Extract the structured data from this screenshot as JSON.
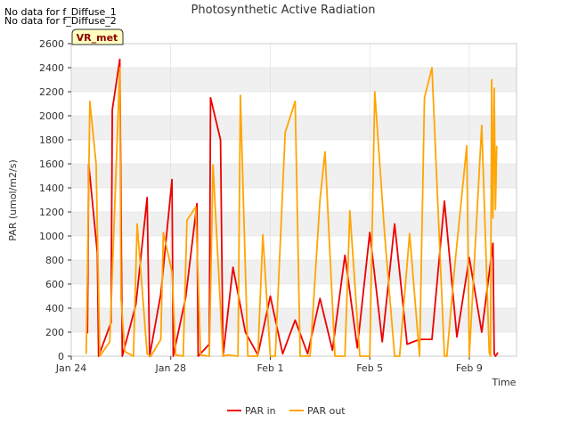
{
  "notices": [
    "No data for f_Diffuse_1",
    "No data for f_Diffuse_2"
  ],
  "site_badge": "VR_met",
  "colors": {
    "par_in": "#ee0000",
    "par_out": "#ffa500",
    "band": "#f0f0f0",
    "grid": "#dcdcdc",
    "badge_fill": "#ffffc0"
  },
  "chart_data": {
    "type": "line",
    "title": "Photosynthetic Active Radiation",
    "xlabel": "Time",
    "ylabel": "PAR (umol/m2/s)",
    "ylim": [
      0,
      2600
    ],
    "xlim": [
      0,
      17.9
    ],
    "x_unit": "days since Jan 24",
    "y_ticks": [
      0,
      200,
      400,
      600,
      800,
      1000,
      1200,
      1400,
      1600,
      1800,
      2000,
      2200,
      2400,
      2600
    ],
    "x_ticks": [
      {
        "value": 0,
        "label": "Jan 24"
      },
      {
        "value": 4,
        "label": "Jan 28"
      },
      {
        "value": 8,
        "label": "Feb 1"
      },
      {
        "value": 12,
        "label": "Feb 5"
      },
      {
        "value": 16,
        "label": "Feb 9"
      }
    ],
    "legend": {
      "position": "bottom-center",
      "entries": [
        "PAR in",
        "PAR out"
      ]
    },
    "series": [
      {
        "name": "PAR in",
        "color": "#ee0000",
        "x": [
          0.65,
          0.7,
          1.05,
          1.1,
          1.6,
          1.65,
          1.95,
          2.05,
          2.6,
          3.05,
          3.15,
          3.6,
          4.05,
          4.1,
          4.6,
          5.05,
          5.1,
          5.55,
          5.6,
          6.0,
          6.1,
          6.5,
          7.0,
          7.5,
          8.0,
          8.5,
          9.0,
          9.5,
          10.0,
          10.5,
          11.0,
          11.5,
          12.0,
          12.5,
          13.0,
          13.5,
          14.0,
          14.5,
          15.0,
          15.5,
          16.0,
          16.5,
          16.95,
          17.0,
          17.05,
          17.15
        ],
        "values": [
          190,
          1600,
          860,
          0,
          280,
          2050,
          2470,
          0,
          430,
          1320,
          0,
          520,
          1470,
          0,
          490,
          1270,
          0,
          100,
          2150,
          1800,
          0,
          740,
          200,
          10,
          500,
          20,
          300,
          20,
          480,
          50,
          840,
          70,
          1030,
          120,
          1100,
          100,
          140,
          140,
          1290,
          160,
          820,
          200,
          940,
          20,
          0,
          30
        ]
      },
      {
        "name": "PAR out",
        "color": "#ffa500",
        "x": [
          0.6,
          0.75,
          1.0,
          1.15,
          1.55,
          1.95,
          2.0,
          2.15,
          2.5,
          2.65,
          3.05,
          3.2,
          3.6,
          3.7,
          4.05,
          4.2,
          4.5,
          4.65,
          5.0,
          5.2,
          5.55,
          5.7,
          6.1,
          6.3,
          6.7,
          6.8,
          7.1,
          7.5,
          7.7,
          8.0,
          8.2,
          8.6,
          9.0,
          9.2,
          9.6,
          10.0,
          10.2,
          10.6,
          11.0,
          11.2,
          11.6,
          12.0,
          12.2,
          12.6,
          13.0,
          13.2,
          13.6,
          14.0,
          14.2,
          14.5,
          15.0,
          15.1,
          15.4,
          15.9,
          16.0,
          16.5,
          16.8,
          16.85,
          16.9,
          16.95,
          17.0,
          17.05,
          17.1
        ],
        "values": [
          20,
          2120,
          1600,
          0,
          120,
          2400,
          480,
          40,
          0,
          1100,
          20,
          0,
          140,
          1030,
          700,
          10,
          0,
          1130,
          1240,
          10,
          0,
          1590,
          0,
          10,
          0,
          2170,
          0,
          0,
          1010,
          0,
          0,
          1860,
          2120,
          0,
          0,
          1300,
          1700,
          0,
          0,
          1210,
          0,
          0,
          2200,
          1000,
          0,
          0,
          1020,
          0,
          2150,
          2400,
          0,
          0,
          720,
          1750,
          0,
          1920,
          30,
          0,
          2300,
          1150,
          2230,
          1220,
          1750
        ]
      }
    ]
  }
}
